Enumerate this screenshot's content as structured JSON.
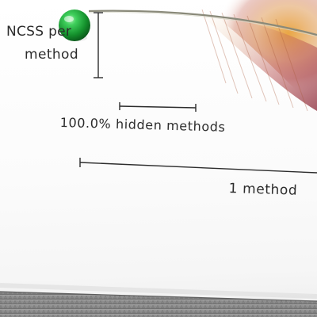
{
  "scene": {
    "labels": {
      "ncss_per": "NCSS per",
      "method": "method",
      "hidden_methods": "100.0% hidden methods",
      "one_method": "1 method"
    },
    "colors": {
      "sphere": "#1f9a3b",
      "feather_warm": "#e9a23a",
      "feather_deep": "#8b2a3a",
      "scale_line": "#2c2c2c",
      "table_edge": "#8a8a8a"
    }
  }
}
